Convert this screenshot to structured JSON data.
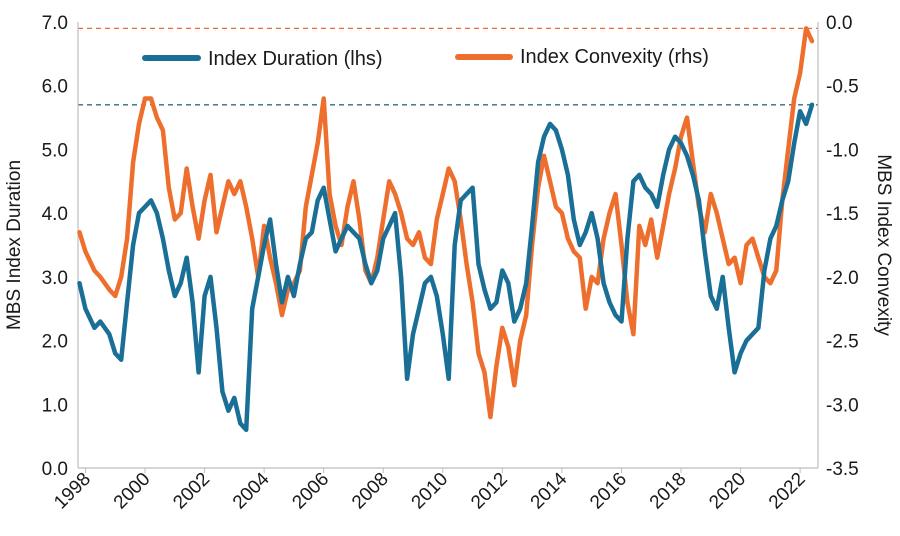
{
  "chart_data": {
    "type": "line",
    "title": "",
    "xlabel": "",
    "ylabel": "MBS Index Duration",
    "y2label": "MBS Index Convexity",
    "xticks": [
      "1998",
      "2000",
      "2002",
      "2004",
      "2006",
      "2008",
      "2010",
      "2012",
      "2014",
      "2016",
      "2018",
      "2020",
      "2022"
    ],
    "xlim": [
      1997.75,
      2022.6
    ],
    "ylim": [
      0,
      7
    ],
    "y2lim": [
      -3.5,
      0
    ],
    "yticks": [
      "0.0",
      "1.0",
      "2.0",
      "3.0",
      "4.0",
      "5.0",
      "6.0",
      "7.0"
    ],
    "y2ticks": [
      "0.0",
      "-0.5",
      "-1.0",
      "-1.5",
      "-2.0",
      "-2.5",
      "-3.0",
      "-3.5"
    ],
    "grid": false,
    "legend_position": "top",
    "reference_lines": [
      {
        "series": "Index Duration (lhs)",
        "axis": "left",
        "value": 5.7,
        "color": "#2a6f87"
      },
      {
        "series": "Index Convexity (rhs)",
        "axis": "right",
        "value": -0.05,
        "color": "#e8702a"
      }
    ],
    "series": [
      {
        "name": "Index Duration (lhs)",
        "axis": "left",
        "color": "#1a6f96",
        "x": [
          1997.8,
          1998.0,
          1998.3,
          1998.5,
          1998.8,
          1999.0,
          1999.2,
          1999.4,
          1999.6,
          1999.8,
          2000.0,
          2000.2,
          2000.4,
          2000.6,
          2000.8,
          2001.0,
          2001.2,
          2001.4,
          2001.6,
          2001.8,
          2002.0,
          2002.2,
          2002.4,
          2002.6,
          2002.8,
          2003.0,
          2003.2,
          2003.4,
          2003.6,
          2003.8,
          2004.0,
          2004.2,
          2004.4,
          2004.6,
          2004.8,
          2005.0,
          2005.2,
          2005.4,
          2005.6,
          2005.8,
          2006.0,
          2006.2,
          2006.4,
          2006.6,
          2006.8,
          2007.0,
          2007.2,
          2007.4,
          2007.6,
          2007.8,
          2008.0,
          2008.2,
          2008.4,
          2008.6,
          2008.8,
          2009.0,
          2009.2,
          2009.4,
          2009.6,
          2009.8,
          2010.0,
          2010.2,
          2010.4,
          2010.6,
          2010.8,
          2011.0,
          2011.2,
          2011.4,
          2011.6,
          2011.8,
          2012.0,
          2012.2,
          2012.4,
          2012.6,
          2012.8,
          2013.0,
          2013.2,
          2013.4,
          2013.6,
          2013.8,
          2014.0,
          2014.2,
          2014.4,
          2014.6,
          2014.8,
          2015.0,
          2015.2,
          2015.4,
          2015.6,
          2015.8,
          2016.0,
          2016.2,
          2016.4,
          2016.6,
          2016.8,
          2017.0,
          2017.2,
          2017.4,
          2017.6,
          2017.8,
          2018.0,
          2018.2,
          2018.4,
          2018.6,
          2018.8,
          2019.0,
          2019.2,
          2019.4,
          2019.6,
          2019.8,
          2020.0,
          2020.2,
          2020.4,
          2020.6,
          2020.8,
          2021.0,
          2021.2,
          2021.4,
          2021.6,
          2021.8,
          2022.0,
          2022.2,
          2022.4
        ],
        "values": [
          2.9,
          2.5,
          2.2,
          2.3,
          2.1,
          1.8,
          1.7,
          2.6,
          3.5,
          4.0,
          4.1,
          4.2,
          4.0,
          3.6,
          3.1,
          2.7,
          2.9,
          3.3,
          2.6,
          1.5,
          2.7,
          3.0,
          2.2,
          1.2,
          0.9,
          1.1,
          0.7,
          0.6,
          2.5,
          3.0,
          3.5,
          3.9,
          3.2,
          2.6,
          3.0,
          2.7,
          3.2,
          3.6,
          3.7,
          4.2,
          4.4,
          3.9,
          3.4,
          3.6,
          3.8,
          3.7,
          3.6,
          3.2,
          2.9,
          3.1,
          3.6,
          3.8,
          4.0,
          3.0,
          1.4,
          2.1,
          2.5,
          2.9,
          3.0,
          2.7,
          2.1,
          1.4,
          3.5,
          4.2,
          4.3,
          4.4,
          3.2,
          2.8,
          2.5,
          2.6,
          3.1,
          2.9,
          2.3,
          2.5,
          2.9,
          3.8,
          4.8,
          5.2,
          5.4,
          5.3,
          5.0,
          4.6,
          3.9,
          3.5,
          3.7,
          4.0,
          3.6,
          2.9,
          2.6,
          2.4,
          2.3,
          3.6,
          4.5,
          4.6,
          4.4,
          4.3,
          4.1,
          4.6,
          5.0,
          5.2,
          5.1,
          4.9,
          4.6,
          4.2,
          3.4,
          2.7,
          2.5,
          3.0,
          2.2,
          1.5,
          1.8,
          2.0,
          2.1,
          2.2,
          3.1,
          3.6,
          3.8,
          4.2,
          4.5,
          5.1,
          5.6,
          5.4,
          5.7
        ]
      },
      {
        "name": "Index Convexity (rhs)",
        "axis": "right",
        "color": "#ee6f2d",
        "x": [
          1997.8,
          1998.0,
          1998.3,
          1998.5,
          1998.8,
          1999.0,
          1999.2,
          1999.4,
          1999.6,
          1999.8,
          2000.0,
          2000.2,
          2000.4,
          2000.6,
          2000.8,
          2001.0,
          2001.2,
          2001.4,
          2001.6,
          2001.8,
          2002.0,
          2002.2,
          2002.4,
          2002.6,
          2002.8,
          2003.0,
          2003.2,
          2003.4,
          2003.6,
          2003.8,
          2004.0,
          2004.2,
          2004.4,
          2004.6,
          2004.8,
          2005.0,
          2005.2,
          2005.4,
          2005.6,
          2005.8,
          2006.0,
          2006.2,
          2006.4,
          2006.6,
          2006.8,
          2007.0,
          2007.2,
          2007.4,
          2007.6,
          2007.8,
          2008.0,
          2008.2,
          2008.4,
          2008.6,
          2008.8,
          2009.0,
          2009.2,
          2009.4,
          2009.6,
          2009.8,
          2010.0,
          2010.2,
          2010.4,
          2010.6,
          2010.8,
          2011.0,
          2011.2,
          2011.4,
          2011.6,
          2011.8,
          2012.0,
          2012.2,
          2012.4,
          2012.6,
          2012.8,
          2013.0,
          2013.2,
          2013.4,
          2013.6,
          2013.8,
          2014.0,
          2014.2,
          2014.4,
          2014.6,
          2014.8,
          2015.0,
          2015.2,
          2015.4,
          2015.6,
          2015.8,
          2016.0,
          2016.2,
          2016.4,
          2016.6,
          2016.8,
          2017.0,
          2017.2,
          2017.4,
          2017.6,
          2017.8,
          2018.0,
          2018.2,
          2018.4,
          2018.6,
          2018.8,
          2019.0,
          2019.2,
          2019.4,
          2019.6,
          2019.8,
          2020.0,
          2020.2,
          2020.4,
          2020.6,
          2020.8,
          2021.0,
          2021.2,
          2021.4,
          2021.6,
          2021.8,
          2022.0,
          2022.2,
          2022.4
        ],
        "values": [
          -1.65,
          -1.8,
          -1.95,
          -2.0,
          -2.1,
          -2.15,
          -2.0,
          -1.7,
          -1.1,
          -0.8,
          -0.6,
          -0.6,
          -0.75,
          -0.85,
          -1.3,
          -1.55,
          -1.5,
          -1.15,
          -1.45,
          -1.7,
          -1.4,
          -1.2,
          -1.65,
          -1.45,
          -1.25,
          -1.35,
          -1.25,
          -1.45,
          -1.7,
          -2.0,
          -1.6,
          -1.85,
          -2.05,
          -2.3,
          -2.1,
          -2.05,
          -1.95,
          -1.45,
          -1.2,
          -0.95,
          -0.6,
          -1.35,
          -1.6,
          -1.75,
          -1.45,
          -1.25,
          -1.55,
          -1.95,
          -2.05,
          -1.85,
          -1.55,
          -1.25,
          -1.35,
          -1.5,
          -1.7,
          -1.75,
          -1.65,
          -1.85,
          -1.9,
          -1.55,
          -1.35,
          -1.15,
          -1.25,
          -1.55,
          -1.9,
          -2.2,
          -2.6,
          -2.75,
          -3.1,
          -2.7,
          -2.4,
          -2.55,
          -2.85,
          -2.5,
          -2.3,
          -1.75,
          -1.3,
          -1.05,
          -1.25,
          -1.45,
          -1.5,
          -1.7,
          -1.8,
          -1.85,
          -2.25,
          -2.0,
          -2.05,
          -1.7,
          -1.5,
          -1.35,
          -1.75,
          -2.2,
          -2.45,
          -1.6,
          -1.75,
          -1.55,
          -1.85,
          -1.6,
          -1.35,
          -1.15,
          -0.9,
          -0.75,
          -1.1,
          -1.45,
          -1.65,
          -1.35,
          -1.5,
          -1.7,
          -1.9,
          -1.85,
          -2.05,
          -1.75,
          -1.7,
          -1.85,
          -2.0,
          -2.05,
          -1.95,
          -1.4,
          -1.0,
          -0.6,
          -0.4,
          -0.05,
          -0.15
        ]
      }
    ]
  }
}
